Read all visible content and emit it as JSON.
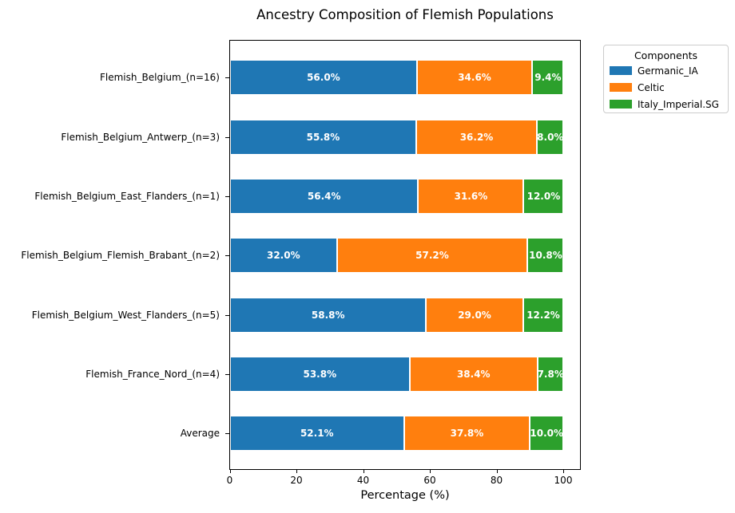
{
  "chart_data": {
    "type": "bar",
    "orientation": "horizontal",
    "stacked": true,
    "title": "Ancestry Composition of Flemish Populations",
    "xlabel": "Percentage (%)",
    "ylabel": "",
    "xlim": [
      0,
      105.4
    ],
    "xticks": [
      0,
      20,
      40,
      60,
      80,
      100
    ],
    "grid": false,
    "bar_label_format": "one_decimal_percent",
    "categories": [
      "Flemish_Belgium_(n=16)",
      "Flemish_Belgium_Antwerp_(n=3)",
      "Flemish_Belgium_East_Flanders_(n=1)",
      "Flemish_Belgium_Flemish_Brabant_(n=2)",
      "Flemish_Belgium_West_Flanders_(n=5)",
      "Flemish_France_Nord_(n=4)",
      "Average"
    ],
    "series": [
      {
        "name": "Germanic_IA",
        "color": "#1f77b4",
        "values": [
          56.0,
          55.8,
          56.4,
          32.0,
          58.8,
          53.8,
          52.1
        ]
      },
      {
        "name": "Celtic",
        "color": "#ff7f0e",
        "values": [
          34.6,
          36.2,
          31.6,
          57.2,
          29.0,
          38.4,
          37.8
        ]
      },
      {
        "name": "Italy_Imperial.SG",
        "color": "#2ca02c",
        "values": [
          9.4,
          8.0,
          12.0,
          10.8,
          12.2,
          7.8,
          10.0
        ]
      }
    ],
    "legend": {
      "title": "Components",
      "position": "upper-right-outside"
    }
  }
}
